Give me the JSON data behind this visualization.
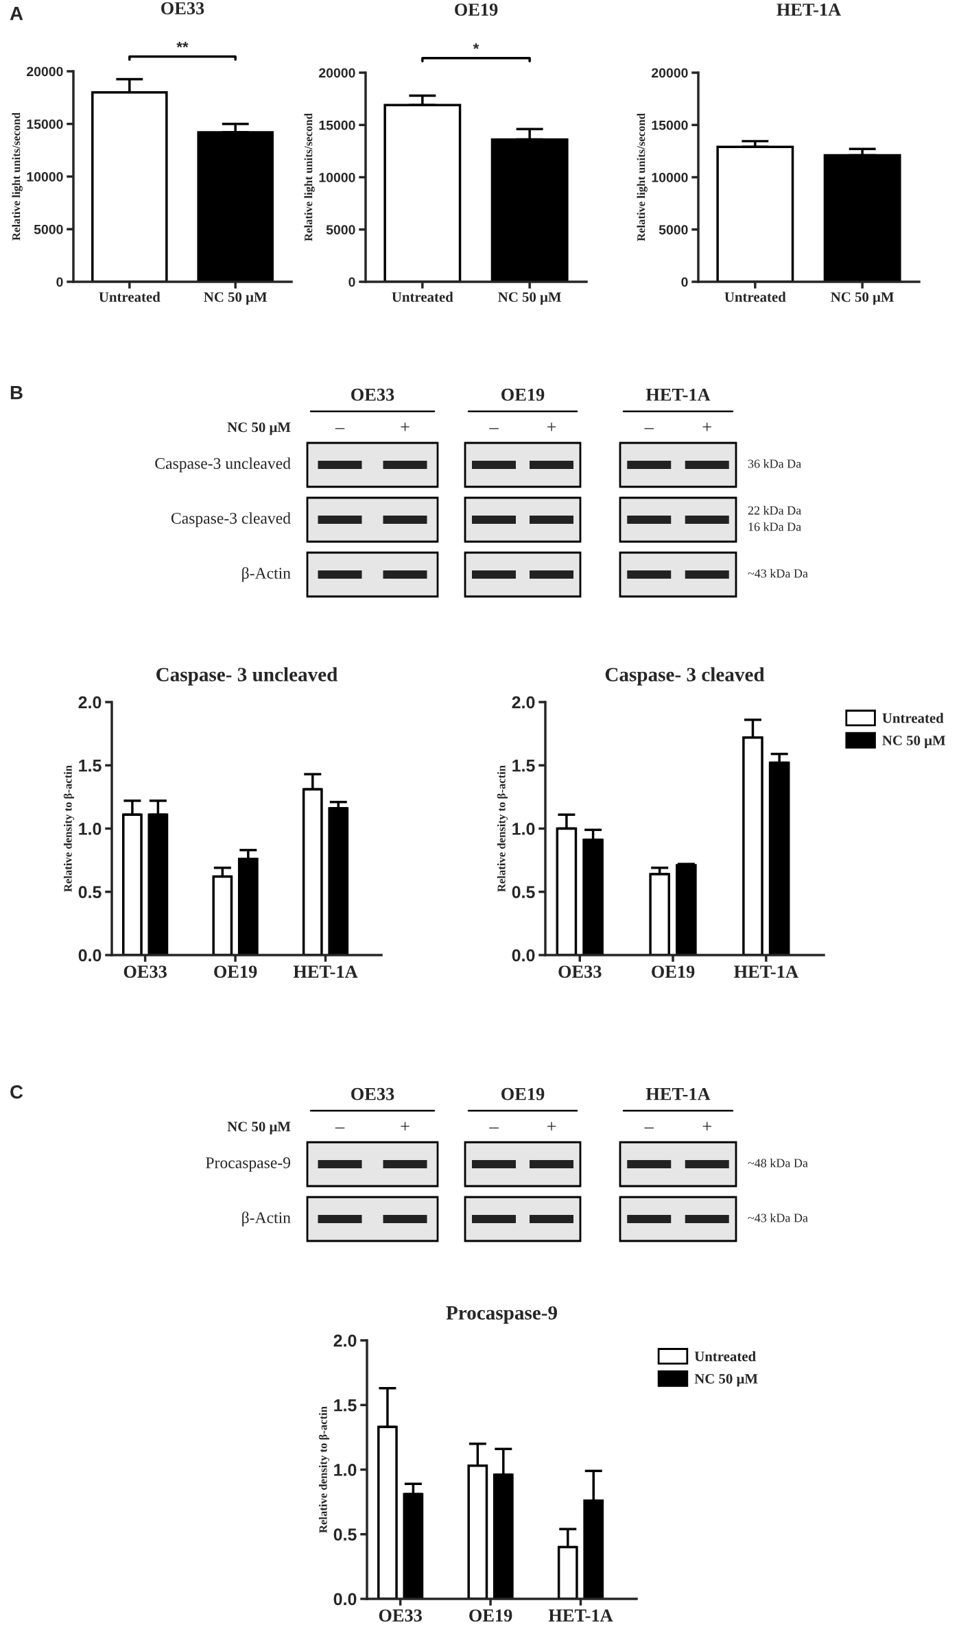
{
  "chart_data": [
    {
      "type": "other",
      "annotations": [
        "A",
        "B",
        "C"
      ]
    },
    {
      "type": "bar",
      "title": "OE33",
      "ylabel": "Relative light units/second",
      "categories": [
        "Untreated",
        "NC 50 μM"
      ],
      "values": [
        18000,
        14200
      ],
      "colors": [
        "#ffffff",
        "#000000"
      ],
      "errors": [
        [
          18000,
          19250
        ],
        [
          14200,
          15000
        ]
      ],
      "ylim": [
        0,
        20000
      ],
      "yticks": [
        0,
        5000,
        10000,
        15000,
        20000
      ],
      "annotations": [
        "**"
      ]
    },
    {
      "type": "bar",
      "title": "OE19",
      "ylabel": "Relative light units/second",
      "categories": [
        "Untreated",
        "NC 50 μM"
      ],
      "values": [
        16900,
        13600
      ],
      "colors": [
        "#ffffff",
        "#000000"
      ],
      "errors": [
        [
          16900,
          17800
        ],
        [
          13600,
          14600
        ]
      ],
      "ylim": [
        0,
        20000
      ],
      "yticks": [
        0,
        5000,
        10000,
        15000,
        20000
      ],
      "annotations": [
        "*"
      ]
    },
    {
      "type": "bar",
      "title": "HET-1A",
      "ylabel": "Relative light units/second",
      "categories": [
        "Untreated",
        "NC 50 μM"
      ],
      "values": [
        12900,
        12100
      ],
      "colors": [
        "#ffffff",
        "#000000"
      ],
      "errors": [
        [
          12900,
          13450
        ],
        [
          12100,
          12700
        ]
      ],
      "ylim": [
        0,
        20000
      ],
      "yticks": [
        0,
        5000,
        10000,
        15000,
        20000
      ]
    },
    {
      "type": "other",
      "categories": [
        "OE33",
        "OE19",
        "HET-1A"
      ],
      "xlabel": "NC 50 μM",
      "y_categories": [
        "Caspase-3 uncleaved",
        "Caspase-3 cleaved",
        "β-Actin"
      ],
      "y2_categories": [
        "36 kDa Da",
        "22 kDa Da\n16 kDa Da",
        "~43 kDa Da"
      ],
      "annotations": [
        "–",
        "+"
      ]
    },
    {
      "type": "bar",
      "title": "Caspase- 3 uncleaved",
      "ylabel": "Relative density to β-actin",
      "categories": [
        "OE33",
        "OE19",
        "HET-1A"
      ],
      "series": [
        {
          "color": "#ffffff",
          "values": [
            1.11,
            0.62,
            1.31
          ],
          "errors": [
            [
              1.11,
              1.22
            ],
            [
              0.62,
              0.69
            ],
            [
              1.31,
              1.43
            ]
          ]
        },
        {
          "color": "#000000",
          "values": [
            1.11,
            0.76,
            1.16
          ],
          "errors": [
            [
              1.11,
              1.22
            ],
            [
              0.76,
              0.83
            ],
            [
              1.16,
              1.21
            ]
          ]
        }
      ],
      "ylim": [
        0,
        2
      ],
      "yticks": [
        {
          "value": 0,
          "label": "0.0"
        },
        0.5,
        {
          "value": 1,
          "label": "1.0"
        },
        1.5,
        {
          "value": 2,
          "label": "2.0"
        }
      ]
    },
    {
      "type": "bar",
      "title": "Caspase- 3 cleaved",
      "ylabel": "Relative density to β-actin",
      "categories": [
        "OE33",
        "OE19",
        "HET-1A"
      ],
      "series": [
        {
          "name": "Untreated",
          "color": "#ffffff",
          "values": [
            1.0,
            0.64,
            1.72
          ],
          "errors": [
            [
              1.0,
              1.11
            ],
            [
              0.64,
              0.69
            ],
            [
              1.72,
              1.86
            ]
          ]
        },
        {
          "name": "NC 50 μM",
          "color": "#000000",
          "values": [
            0.91,
            0.71,
            1.52
          ],
          "errors": [
            [
              0.91,
              0.99
            ],
            [
              0.71,
              0.72
            ],
            [
              1.52,
              1.59
            ]
          ]
        }
      ],
      "ylim": [
        0,
        2
      ],
      "yticks": [
        {
          "value": 0,
          "label": "0.0"
        },
        0.5,
        {
          "value": 1,
          "label": "1.0"
        },
        1.5,
        {
          "value": 2,
          "label": "2.0"
        }
      ],
      "legend": "right"
    },
    {
      "type": "other",
      "categories": [
        "OE33",
        "OE19",
        "HET-1A"
      ],
      "xlabel": "NC 50 μM",
      "y_categories": [
        "Procaspase-9",
        "β-Actin"
      ],
      "y2_categories": [
        "~48 kDa Da",
        "~43 kDa Da"
      ],
      "annotations": [
        "–",
        "+"
      ]
    },
    {
      "type": "bar",
      "title": "Procaspase-9",
      "ylabel": "Relative density to β-actin",
      "categories": [
        "OE33",
        "OE19",
        "HET-1A"
      ],
      "series": [
        {
          "name": "Untreated",
          "color": "#ffffff",
          "values": [
            1.33,
            1.03,
            0.4
          ],
          "errors": [
            [
              1.33,
              1.63
            ],
            [
              1.03,
              1.2
            ],
            [
              0.4,
              0.54
            ]
          ]
        },
        {
          "name": "NC 50 μM",
          "color": "#000000",
          "values": [
            0.81,
            0.96,
            0.76
          ],
          "errors": [
            [
              0.81,
              0.89
            ],
            [
              0.96,
              1.16
            ],
            [
              0.76,
              0.99
            ]
          ]
        }
      ],
      "ylim": [
        0,
        2
      ],
      "yticks": [
        {
          "value": 0,
          "label": "0.0"
        },
        0.5,
        {
          "value": 1,
          "label": "1.0"
        },
        1.5,
        {
          "value": 2,
          "label": "2.0"
        }
      ],
      "legend": "right"
    }
  ]
}
